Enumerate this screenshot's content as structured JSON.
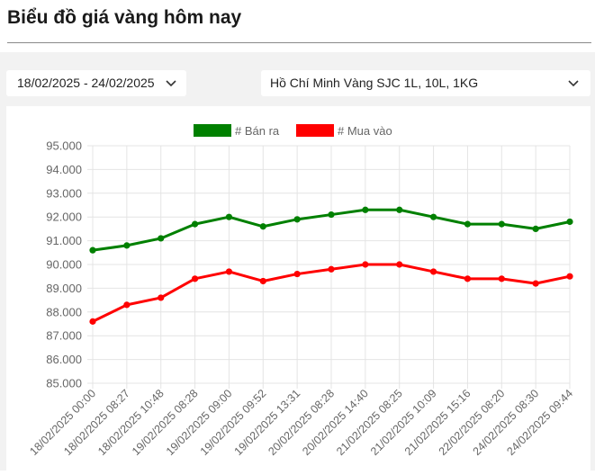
{
  "page": {
    "title": "Biểu đồ giá vàng hôm nay"
  },
  "filters": {
    "date_range": "18/02/2025 - 24/02/2025",
    "product": "Hồ Chí Minh Vàng SJC 1L, 10L, 1KG"
  },
  "icons": {
    "dropdown": "chevron-down-icon"
  },
  "chart_data": {
    "type": "line",
    "categories": [
      "18/02/2025 00:00",
      "18/02/2025 08:27",
      "18/02/2025 10:48",
      "19/02/2025 08:28",
      "19/02/2025 09:00",
      "19/02/2025 09:52",
      "19/02/2025 13:31",
      "20/02/2025 08:28",
      "20/02/2025 14:40",
      "21/02/2025 08:25",
      "21/02/2025 10:09",
      "21/02/2025 15:16",
      "22/02/2025 08:20",
      "24/02/2025 08:30",
      "24/02/2025 09:44"
    ],
    "series": [
      {
        "name": "# Bán ra",
        "color": "#008000",
        "values": [
          90.6,
          90.8,
          91.1,
          91.7,
          92.0,
          91.6,
          91.9,
          92.1,
          92.3,
          92.3,
          92.0,
          91.7,
          91.7,
          91.5,
          91.8
        ]
      },
      {
        "name": "# Mua vào",
        "color": "#ff0000",
        "values": [
          87.6,
          88.3,
          88.6,
          89.4,
          89.7,
          89.3,
          89.6,
          89.8,
          90.0,
          90.0,
          89.7,
          89.4,
          89.4,
          89.2,
          89.5
        ]
      }
    ],
    "yticks": [
      "95.000",
      "94.000",
      "93.000",
      "92.000",
      "91.000",
      "90.000",
      "89.000",
      "88.000",
      "87.000",
      "86.000",
      "85.000"
    ],
    "ylim": [
      85,
      95
    ],
    "grid": true,
    "legend": "top-center",
    "title": "",
    "xlabel": "",
    "ylabel": ""
  }
}
